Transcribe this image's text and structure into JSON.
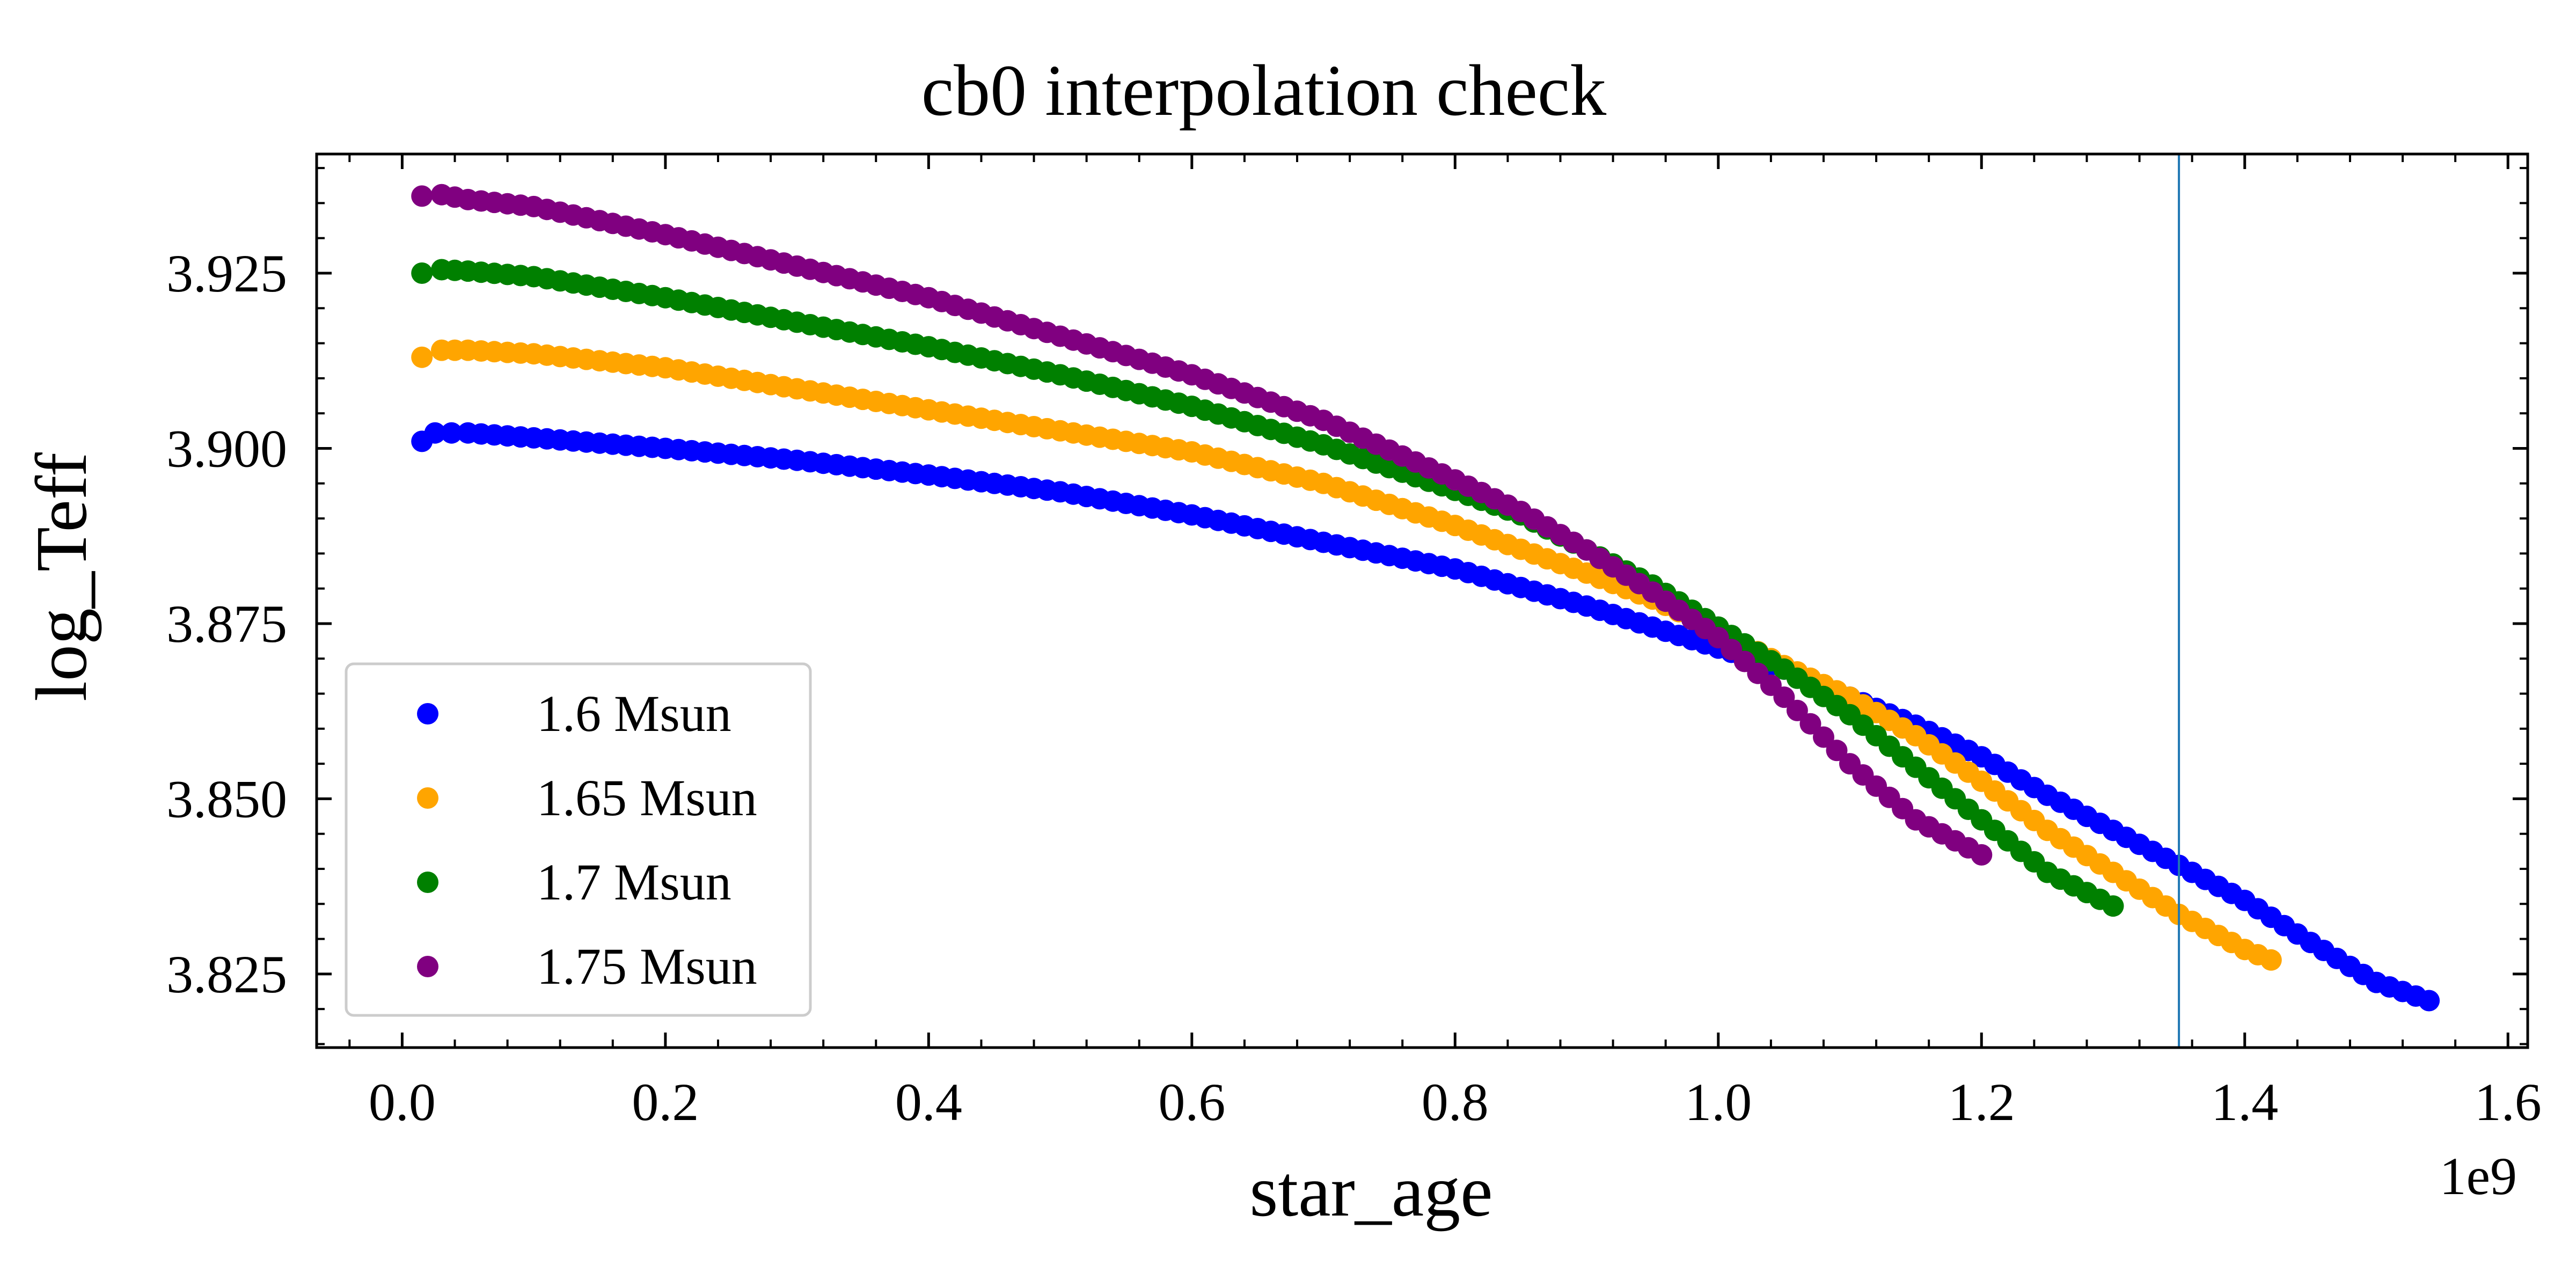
{
  "chart_data": {
    "type": "scatter",
    "title": "cb0 interpolation check",
    "xlabel": "star_age",
    "ylabel": "log_Teff",
    "x_offset_label": "1e9",
    "x_multiplier": 1000000000,
    "xlim": [
      -0.065,
      1.615
    ],
    "ylim": [
      3.8145,
      3.942
    ],
    "x_ticks": [
      0.0,
      0.2,
      0.4,
      0.6,
      0.8,
      1.0,
      1.2,
      1.4,
      1.6
    ],
    "x_tick_labels": [
      "0.0",
      "0.2",
      "0.4",
      "0.6",
      "0.8",
      "1.0",
      "1.2",
      "1.4",
      "1.6"
    ],
    "y_ticks": [
      3.825,
      3.85,
      3.875,
      3.9,
      3.925
    ],
    "y_tick_labels": [
      "3.825",
      "3.850",
      "3.875",
      "3.900",
      "3.925"
    ],
    "grid": false,
    "legend_position": "lower-left",
    "vertical_line": {
      "x": 1.35,
      "color": "#1f77b4"
    },
    "series": [
      {
        "name": "1.6 Msun",
        "color": "#0000ff",
        "points": [
          [
            0.015,
            3.901
          ],
          [
            0.025,
            3.9022
          ],
          [
            0.05,
            3.9022
          ],
          [
            0.1,
            3.9015
          ],
          [
            0.2,
            3.9
          ],
          [
            0.3,
            3.8983
          ],
          [
            0.4,
            3.8962
          ],
          [
            0.5,
            3.8938
          ],
          [
            0.6,
            3.8905
          ],
          [
            0.7,
            3.8866
          ],
          [
            0.8,
            3.8828
          ],
          [
            0.9,
            3.8775
          ],
          [
            0.95,
            3.8745
          ],
          [
            1.0,
            3.8715
          ],
          [
            1.05,
            3.8685
          ],
          [
            1.1,
            3.8645
          ],
          [
            1.15,
            3.8605
          ],
          [
            1.2,
            3.856
          ],
          [
            1.25,
            3.8505
          ],
          [
            1.3,
            3.8455
          ],
          [
            1.35,
            3.8405
          ],
          [
            1.4,
            3.8355
          ],
          [
            1.45,
            3.8295
          ],
          [
            1.5,
            3.8238
          ],
          [
            1.54,
            3.8212
          ]
        ]
      },
      {
        "name": "1.65 Msun",
        "color": "#ffa500",
        "points": [
          [
            0.015,
            3.913
          ],
          [
            0.03,
            3.914
          ],
          [
            0.05,
            3.914
          ],
          [
            0.1,
            3.9135
          ],
          [
            0.2,
            3.9115
          ],
          [
            0.3,
            3.9085
          ],
          [
            0.4,
            3.9055
          ],
          [
            0.5,
            3.9025
          ],
          [
            0.6,
            3.8995
          ],
          [
            0.7,
            3.895
          ],
          [
            0.8,
            3.889
          ],
          [
            0.9,
            3.8822
          ],
          [
            0.95,
            3.8785
          ],
          [
            1.0,
            3.874
          ],
          [
            1.05,
            3.869
          ],
          [
            1.1,
            3.8645
          ],
          [
            1.15,
            3.859
          ],
          [
            1.2,
            3.8525
          ],
          [
            1.25,
            3.8455
          ],
          [
            1.3,
            3.8395
          ],
          [
            1.35,
            3.8335
          ],
          [
            1.4,
            3.8285
          ],
          [
            1.42,
            3.827
          ]
        ]
      },
      {
        "name": "1.7 Msun",
        "color": "#008000",
        "points": [
          [
            0.015,
            3.925
          ],
          [
            0.03,
            3.9255
          ],
          [
            0.05,
            3.9253
          ],
          [
            0.1,
            3.9245
          ],
          [
            0.2,
            3.9215
          ],
          [
            0.3,
            3.918
          ],
          [
            0.4,
            3.9145
          ],
          [
            0.5,
            3.9105
          ],
          [
            0.6,
            3.906
          ],
          [
            0.7,
            3.9005
          ],
          [
            0.8,
            3.894
          ],
          [
            0.85,
            3.8905
          ],
          [
            0.9,
            3.8855
          ],
          [
            0.95,
            3.8805
          ],
          [
            1.0,
            3.8745
          ],
          [
            1.05,
            3.8685
          ],
          [
            1.1,
            3.862
          ],
          [
            1.15,
            3.8545
          ],
          [
            1.2,
            3.847
          ],
          [
            1.25,
            3.8395
          ],
          [
            1.3,
            3.8347
          ]
        ]
      },
      {
        "name": "1.75 Msun",
        "color": "#800080",
        "points": [
          [
            0.015,
            3.936
          ],
          [
            0.03,
            3.9362
          ],
          [
            0.05,
            3.9355
          ],
          [
            0.1,
            3.9345
          ],
          [
            0.2,
            3.9305
          ],
          [
            0.3,
            3.926
          ],
          [
            0.4,
            3.9215
          ],
          [
            0.5,
            3.916
          ],
          [
            0.6,
            3.9105
          ],
          [
            0.7,
            3.904
          ],
          [
            0.8,
            3.8955
          ],
          [
            0.85,
            3.891
          ],
          [
            0.9,
            3.8855
          ],
          [
            0.95,
            3.8795
          ],
          [
            1.0,
            3.873
          ],
          [
            1.05,
            3.8645
          ],
          [
            1.1,
            3.855
          ],
          [
            1.15,
            3.847
          ],
          [
            1.2,
            3.842
          ]
        ]
      }
    ]
  }
}
